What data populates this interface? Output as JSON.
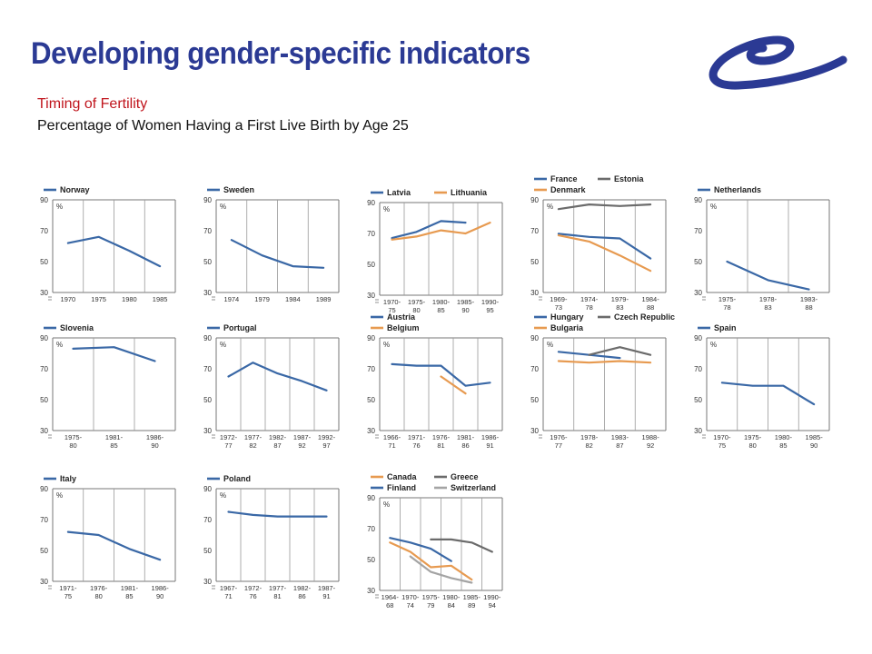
{
  "header": {
    "title": "Developing gender-specific indicators",
    "subtitle_line1": "Timing of Fertility",
    "subtitle_line2": "Percentage of Women Having a First Live Birth by Age 25"
  },
  "logo": {
    "icon": "council-of-europe-logo",
    "color": "#2b3a94"
  },
  "colors": {
    "blue": "#3a68a6",
    "orange": "#e79a50",
    "gray": "#6b6b6b",
    "lightgray": "#a4a4a4"
  },
  "chart_data": [
    {
      "type": "line",
      "ylim": [
        30,
        90
      ],
      "yticks": [
        30,
        50,
        70,
        90
      ],
      "ylabel": "%",
      "x": [
        "1970",
        "1975",
        "1980",
        "1985"
      ],
      "series": [
        {
          "name": "Norway",
          "color": "blue",
          "values": [
            62,
            66,
            57,
            47
          ]
        }
      ]
    },
    {
      "type": "line",
      "ylim": [
        30,
        90
      ],
      "yticks": [
        30,
        50,
        70,
        90
      ],
      "ylabel": "%",
      "x": [
        "1974",
        "1979",
        "1984",
        "1989"
      ],
      "series": [
        {
          "name": "Sweden",
          "color": "blue",
          "values": [
            64,
            54,
            47,
            46
          ]
        }
      ]
    },
    {
      "type": "line",
      "ylim": [
        30,
        90
      ],
      "yticks": [
        30,
        50,
        70,
        90
      ],
      "ylabel": "%",
      "x": [
        "1970-75",
        "1975-80",
        "1980-85",
        "1985-90",
        "1990-95"
      ],
      "series": [
        {
          "name": "Latvia",
          "color": "blue",
          "values": [
            67,
            71,
            78,
            77,
            null
          ]
        },
        {
          "name": "Lithuania",
          "color": "orange",
          "values": [
            66,
            68,
            72,
            70,
            77
          ]
        }
      ]
    },
    {
      "type": "line",
      "ylim": [
        30,
        90
      ],
      "yticks": [
        30,
        50,
        70,
        90
      ],
      "ylabel": "%",
      "x": [
        "1969-73",
        "1974-78",
        "1979-83",
        "1984-88"
      ],
      "series": [
        {
          "name": "France",
          "color": "blue",
          "values": [
            68,
            66,
            65,
            52
          ]
        },
        {
          "name": "Estonia",
          "color": "gray",
          "values": [
            84,
            87,
            86,
            87
          ]
        },
        {
          "name": "Denmark",
          "color": "orange",
          "values": [
            67,
            63,
            54,
            44
          ]
        }
      ]
    },
    {
      "type": "line",
      "ylim": [
        30,
        90
      ],
      "yticks": [
        30,
        50,
        70,
        90
      ],
      "ylabel": "%",
      "x": [
        "1975-78",
        "1978-83",
        "1983-88"
      ],
      "series": [
        {
          "name": "Netherlands",
          "color": "blue",
          "values": [
            50,
            38,
            32
          ]
        }
      ]
    },
    {
      "type": "line",
      "ylim": [
        30,
        90
      ],
      "yticks": [
        30,
        50,
        70,
        90
      ],
      "ylabel": "%",
      "x": [
        "1975-80",
        "1981-85",
        "1986-90"
      ],
      "series": [
        {
          "name": "Slovenia",
          "color": "blue",
          "values": [
            83,
            84,
            75
          ]
        }
      ]
    },
    {
      "type": "line",
      "ylim": [
        30,
        90
      ],
      "yticks": [
        30,
        50,
        70,
        90
      ],
      "ylabel": "%",
      "x": [
        "1972-77",
        "1977-82",
        "1982-87",
        "1987-92",
        "1992-97"
      ],
      "series": [
        {
          "name": "Portugal",
          "color": "blue",
          "values": [
            65,
            74,
            67,
            62,
            56
          ]
        }
      ]
    },
    {
      "type": "line",
      "ylim": [
        30,
        90
      ],
      "yticks": [
        30,
        50,
        70,
        90
      ],
      "ylabel": "%",
      "x": [
        "1966-71",
        "1971-76",
        "1976-81",
        "1981-86",
        "1986-91"
      ],
      "series": [
        {
          "name": "Austria",
          "color": "blue",
          "values": [
            73,
            72,
            72,
            59,
            61
          ]
        },
        {
          "name": "Belgium",
          "color": "orange",
          "values": [
            null,
            null,
            65,
            54,
            null
          ]
        }
      ]
    },
    {
      "type": "line",
      "ylim": [
        30,
        90
      ],
      "yticks": [
        30,
        50,
        70,
        90
      ],
      "ylabel": "%",
      "x": [
        "1976-77",
        "1978-82",
        "1983-87",
        "1988-92"
      ],
      "series": [
        {
          "name": "Hungary",
          "color": "blue",
          "values": [
            81,
            79,
            77,
            null
          ]
        },
        {
          "name": "Czech Republic",
          "color": "gray",
          "values": [
            null,
            79,
            84,
            79
          ]
        },
        {
          "name": "Bulgaria",
          "color": "orange",
          "values": [
            75,
            74,
            75,
            74
          ]
        }
      ]
    },
    {
      "type": "line",
      "ylim": [
        30,
        90
      ],
      "yticks": [
        30,
        50,
        70,
        90
      ],
      "ylabel": "%",
      "x": [
        "1970-75",
        "1975-80",
        "1980-85",
        "1985-90"
      ],
      "series": [
        {
          "name": "Spain",
          "color": "blue",
          "values": [
            61,
            59,
            59,
            47
          ]
        }
      ]
    },
    {
      "type": "line",
      "ylim": [
        30,
        90
      ],
      "yticks": [
        30,
        50,
        70,
        90
      ],
      "ylabel": "%",
      "x": [
        "1971-75",
        "1976-80",
        "1981-85",
        "1986-90"
      ],
      "series": [
        {
          "name": "Italy",
          "color": "blue",
          "values": [
            62,
            60,
            51,
            44
          ]
        }
      ]
    },
    {
      "type": "line",
      "ylim": [
        30,
        90
      ],
      "yticks": [
        30,
        50,
        70,
        90
      ],
      "ylabel": "%",
      "x": [
        "1967-71",
        "1972-76",
        "1977-81",
        "1982-86",
        "1987-91"
      ],
      "series": [
        {
          "name": "Poland",
          "color": "blue",
          "values": [
            75,
            73,
            72,
            72,
            72
          ]
        }
      ]
    },
    {
      "type": "line",
      "ylim": [
        30,
        90
      ],
      "yticks": [
        30,
        50,
        70,
        90
      ],
      "ylabel": "%",
      "x": [
        "1964-68",
        "1970-74",
        "1975-79",
        "1980-84",
        "1985-89",
        "1990-94"
      ],
      "series": [
        {
          "name": "Canada",
          "color": "orange",
          "values": [
            61,
            55,
            45,
            46,
            37,
            null
          ]
        },
        {
          "name": "Greece",
          "color": "gray",
          "values": [
            null,
            null,
            63,
            63,
            61,
            55
          ]
        },
        {
          "name": "Finland",
          "color": "blue",
          "values": [
            64,
            61,
            57,
            49,
            null,
            null
          ]
        },
        {
          "name": "Switzerland",
          "color": "lightgray",
          "values": [
            null,
            52,
            42,
            38,
            35,
            null
          ]
        }
      ]
    }
  ]
}
